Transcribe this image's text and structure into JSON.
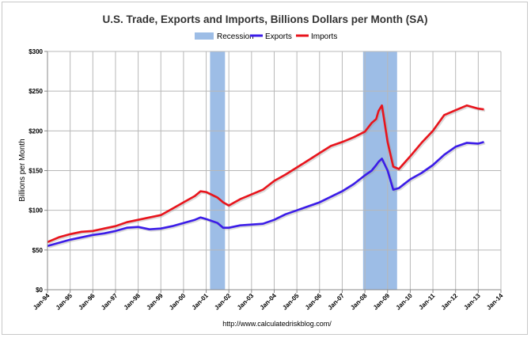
{
  "chart_data": {
    "type": "line",
    "title": "U.S. Trade, Exports and Imports, Billions Dollars per Month (SA)",
    "ylabel": "Billions per Month",
    "xlabel": "",
    "source": "http://www.calculatedriskblog.com/",
    "ylim": [
      0,
      300
    ],
    "y_ticks": [
      "$0",
      "$50",
      "$100",
      "$150",
      "$200",
      "$250",
      "$300"
    ],
    "y_tick_values": [
      0,
      50,
      100,
      150,
      200,
      250,
      300
    ],
    "x_ticks": [
      "Jan-94",
      "Jan-95",
      "Jan-96",
      "Jan-97",
      "Jan-98",
      "Jan-99",
      "Jan-00",
      "Jan-01",
      "Jan-02",
      "Jan-03",
      "Jan-04",
      "Jan-05",
      "Jan-06",
      "Jan-07",
      "Jan-08",
      "Jan-09",
      "Jan-10",
      "Jan-11",
      "Jan-12",
      "Jan-13",
      "Jan-14"
    ],
    "x_tick_values": [
      1994,
      1995,
      1996,
      1997,
      1998,
      1999,
      2000,
      2001,
      2002,
      2003,
      2004,
      2005,
      2006,
      2007,
      2008,
      2009,
      2010,
      2011,
      2012,
      2013,
      2014
    ],
    "xlim": [
      1994,
      2014
    ],
    "grid": true,
    "legend_position": "top-center",
    "legend": [
      {
        "name": "Recession",
        "color": "#9dbde6",
        "kind": "band"
      },
      {
        "name": "Exports",
        "color": "#3b1ce8",
        "kind": "line"
      },
      {
        "name": "Imports",
        "color": "#e8141c",
        "kind": "line"
      }
    ],
    "recessions": [
      {
        "start": 2001.17,
        "end": 2001.83
      },
      {
        "start": 2007.92,
        "end": 2009.42
      }
    ],
    "series": [
      {
        "name": "Exports",
        "color": "#3b1ce8",
        "x": [
          1994.0,
          1994.5,
          1995.0,
          1995.5,
          1996.0,
          1996.5,
          1997.0,
          1997.5,
          1998.0,
          1998.5,
          1999.0,
          1999.5,
          2000.0,
          2000.5,
          2000.75,
          2001.0,
          2001.5,
          2001.75,
          2002.0,
          2002.5,
          2003.0,
          2003.5,
          2004.0,
          2004.5,
          2005.0,
          2005.5,
          2006.0,
          2006.5,
          2007.0,
          2007.5,
          2008.0,
          2008.3,
          2008.5,
          2008.6,
          2008.75,
          2009.0,
          2009.25,
          2009.5,
          2010.0,
          2010.5,
          2011.0,
          2011.5,
          2012.0,
          2012.5,
          2013.0,
          2013.25
        ],
        "values": [
          55,
          59,
          63,
          66,
          69,
          71,
          74,
          78,
          79,
          76,
          77,
          80,
          84,
          88,
          91,
          89,
          84,
          78,
          78,
          81,
          82,
          83,
          88,
          95,
          100,
          105,
          110,
          117,
          124,
          133,
          144,
          150,
          157,
          161,
          165,
          150,
          126,
          128,
          139,
          147,
          157,
          170,
          180,
          185,
          184,
          186
        ]
      },
      {
        "name": "Imports",
        "color": "#e8141c",
        "x": [
          1994.0,
          1994.5,
          1995.0,
          1995.5,
          1996.0,
          1996.5,
          1997.0,
          1997.5,
          1998.0,
          1998.5,
          1999.0,
          1999.5,
          2000.0,
          2000.5,
          2000.75,
          2001.0,
          2001.5,
          2001.75,
          2002.0,
          2002.5,
          2003.0,
          2003.5,
          2004.0,
          2004.5,
          2005.0,
          2005.5,
          2006.0,
          2006.5,
          2007.0,
          2007.5,
          2008.0,
          2008.3,
          2008.5,
          2008.6,
          2008.75,
          2009.0,
          2009.25,
          2009.5,
          2010.0,
          2010.5,
          2011.0,
          2011.5,
          2012.0,
          2012.5,
          2013.0,
          2013.25
        ],
        "values": [
          60,
          66,
          70,
          73,
          74,
          77,
          80,
          85,
          88,
          91,
          94,
          102,
          110,
          118,
          124,
          123,
          116,
          110,
          106,
          114,
          120,
          126,
          137,
          145,
          154,
          163,
          172,
          181,
          186,
          192,
          199,
          210,
          215,
          225,
          232,
          186,
          155,
          152,
          168,
          185,
          200,
          220,
          226,
          232,
          228,
          227
        ]
      }
    ]
  }
}
